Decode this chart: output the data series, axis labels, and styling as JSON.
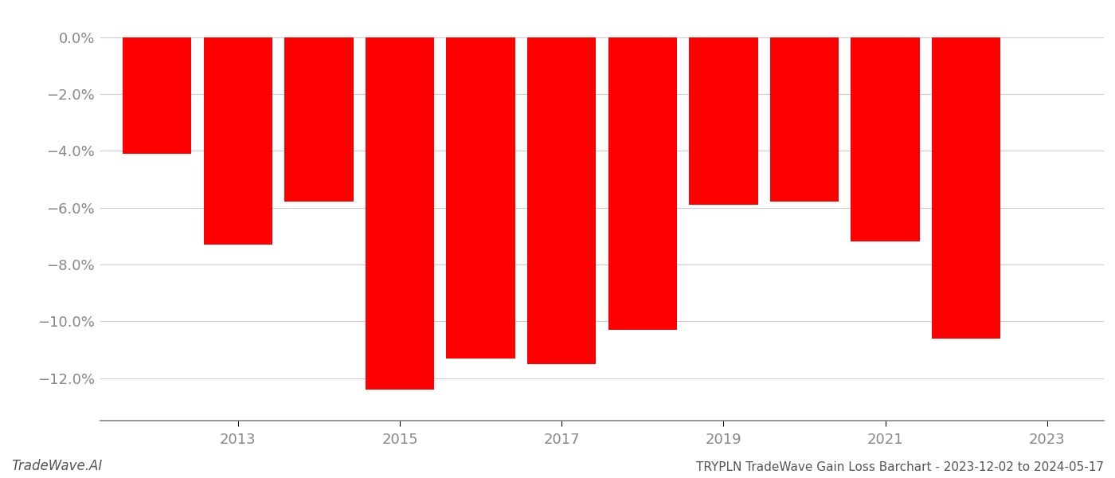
{
  "years": [
    2012,
    2013,
    2014,
    2015,
    2016,
    2017,
    2018,
    2019,
    2020,
    2021,
    2022
  ],
  "values": [
    -4.1,
    -7.3,
    -5.8,
    -12.4,
    -11.3,
    -11.5,
    -10.3,
    -5.9,
    -5.8,
    -7.2,
    -10.6
  ],
  "bar_color": "#ff0000",
  "title": "TRYPLN TradeWave Gain Loss Barchart - 2023-12-02 to 2024-05-17",
  "watermark": "TradeWave.AI",
  "ylim": [
    -13.5,
    0.8
  ],
  "yticks": [
    0.0,
    -2.0,
    -4.0,
    -6.0,
    -8.0,
    -10.0,
    -12.0
  ],
  "xtick_labels": [
    "2013",
    "2015",
    "2017",
    "2019",
    "2021",
    "2023"
  ],
  "xtick_positions": [
    2013,
    2015,
    2017,
    2019,
    2021,
    2023
  ],
  "background_color": "#ffffff",
  "bar_width": 0.85,
  "grid_color": "#cccccc",
  "tick_color": "#888888",
  "label_fontsize": 13,
  "title_fontsize": 11,
  "watermark_fontsize": 12,
  "xlim_left": 2011.3,
  "xlim_right": 2023.7
}
